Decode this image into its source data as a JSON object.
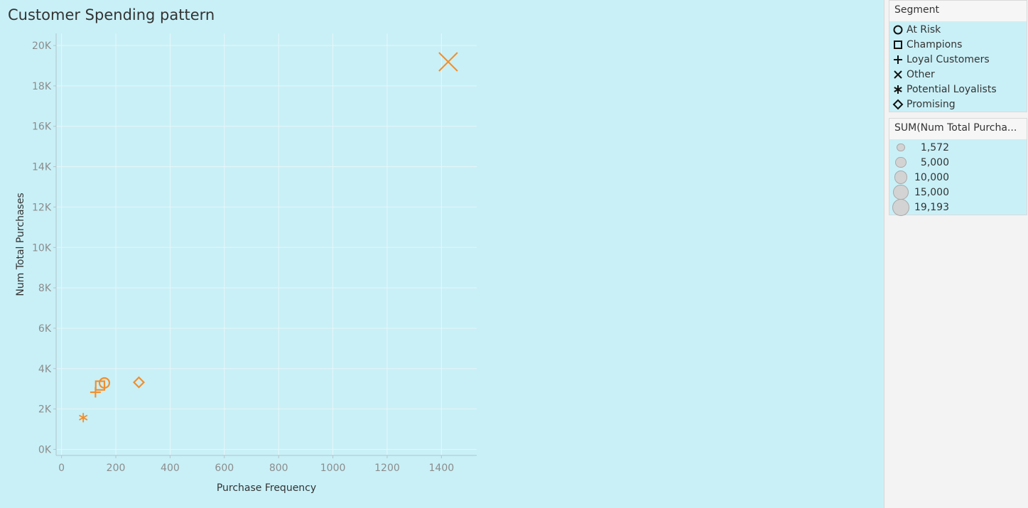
{
  "title": "Customer Spending pattern",
  "chart_data": {
    "type": "scatter",
    "title": "Customer Spending pattern",
    "xlabel": "Purchase Frequency",
    "ylabel": "Num Total Purchases",
    "xlim": [
      -20,
      1530
    ],
    "ylim": [
      -300,
      20600
    ],
    "x_ticks": [
      0,
      200,
      400,
      600,
      800,
      1000,
      1200,
      1400
    ],
    "x_tick_labels": [
      "0",
      "200",
      "400",
      "600",
      "800",
      "1000",
      "1200",
      "1400"
    ],
    "y_ticks": [
      0,
      2000,
      4000,
      6000,
      8000,
      10000,
      12000,
      14000,
      16000,
      18000,
      20000
    ],
    "y_tick_labels": [
      "0K",
      "2K",
      "4K",
      "6K",
      "8K",
      "10K",
      "12K",
      "14K",
      "16K",
      "18K",
      "20K"
    ],
    "grid": true,
    "mark_color": "#f28e2b",
    "points": [
      {
        "segment": "Other",
        "shape": "x",
        "x": 1425,
        "y": 19193
      },
      {
        "segment": "At Risk",
        "shape": "circle",
        "x": 158,
        "y": 3290
      },
      {
        "segment": "Champions",
        "shape": "square",
        "x": 142,
        "y": 3160
      },
      {
        "segment": "Loyal Customers",
        "shape": "plus",
        "x": 125,
        "y": 2830
      },
      {
        "segment": "Potential Loyalists",
        "shape": "asterisk",
        "x": 80,
        "y": 1572
      },
      {
        "segment": "Promising",
        "shape": "diamond",
        "x": 285,
        "y": 3320
      }
    ]
  },
  "legend_segment": {
    "title": "Segment",
    "items": [
      {
        "label": "At Risk",
        "shape": "circle"
      },
      {
        "label": "Champions",
        "shape": "square"
      },
      {
        "label": "Loyal Customers",
        "shape": "plus"
      },
      {
        "label": "Other",
        "shape": "x"
      },
      {
        "label": "Potential Loyalists",
        "shape": "asterisk"
      },
      {
        "label": "Promising",
        "shape": "diamond"
      }
    ]
  },
  "legend_size": {
    "title": "SUM(Num Total Purcha...",
    "items": [
      {
        "label": "1,572",
        "value": 1572
      },
      {
        "label": "5,000",
        "value": 5000
      },
      {
        "label": "10,000",
        "value": 10000
      },
      {
        "label": "15,000",
        "value": 15000
      },
      {
        "label": "19,193",
        "value": 19193
      }
    ]
  }
}
